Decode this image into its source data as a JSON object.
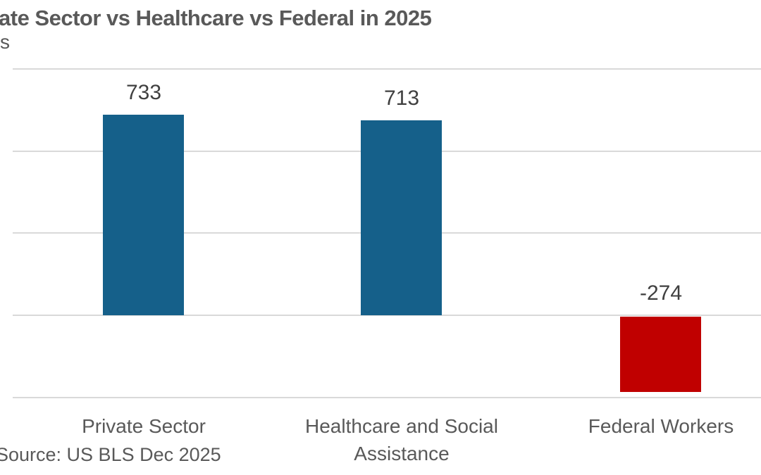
{
  "chart_data": {
    "type": "bar",
    "title": "ate Sector vs Healthcare vs Federal in 2025",
    "subtitle": "s",
    "categories": [
      "Private Sector",
      "Healthcare and Social Assistance",
      "Federal Workers"
    ],
    "values": [
      733,
      713,
      -274
    ],
    "data_labels": [
      "733",
      "713",
      "-274"
    ],
    "series_colors": [
      "#15608A",
      "#15608A",
      "#C00000"
    ],
    "ylim": [
      -300,
      900
    ],
    "gridline_values": [
      900,
      600,
      300,
      0,
      -300
    ],
    "grid": true,
    "legend": false,
    "xlabel": "",
    "ylabel": "",
    "source": "Source: US BLS Dec 2025",
    "colors": {
      "positive_bar": "#15608A",
      "negative_bar": "#C00000",
      "gridline": "#D9D9D9",
      "title_text": "#595959",
      "data_label_text": "#404040",
      "category_text": "#595959",
      "background": "#FFFFFF"
    }
  }
}
